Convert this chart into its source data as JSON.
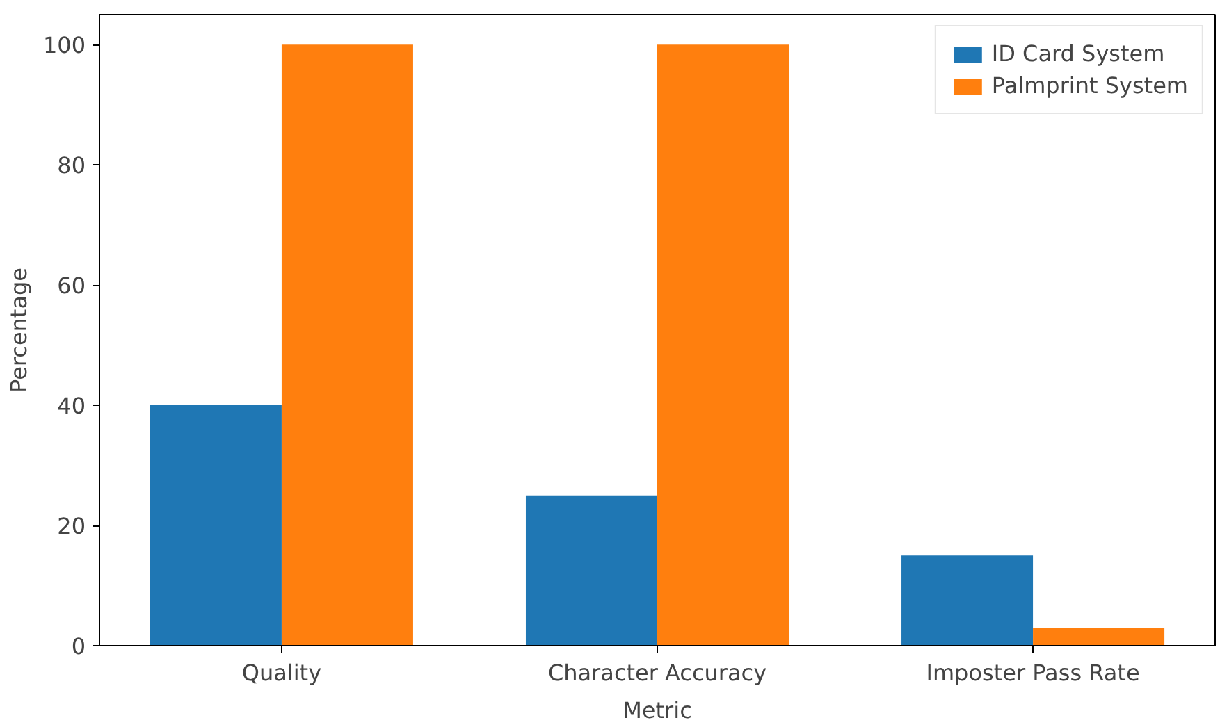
{
  "chart_data": {
    "type": "bar",
    "xlabel": "Metric",
    "ylabel": "Percentage",
    "categories": [
      "Quality",
      "Character Accuracy",
      "Imposter Pass Rate"
    ],
    "series": [
      {
        "name": "ID Card System",
        "color": "#1f77b4",
        "values": [
          40,
          25,
          15
        ]
      },
      {
        "name": "Palmprint System",
        "color": "#ff7f0e",
        "values": [
          100,
          100,
          3
        ]
      }
    ],
    "ylim": [
      0,
      105
    ],
    "yticks": [
      0,
      20,
      40,
      60,
      80,
      100
    ],
    "grid": false,
    "legend": "top right"
  }
}
